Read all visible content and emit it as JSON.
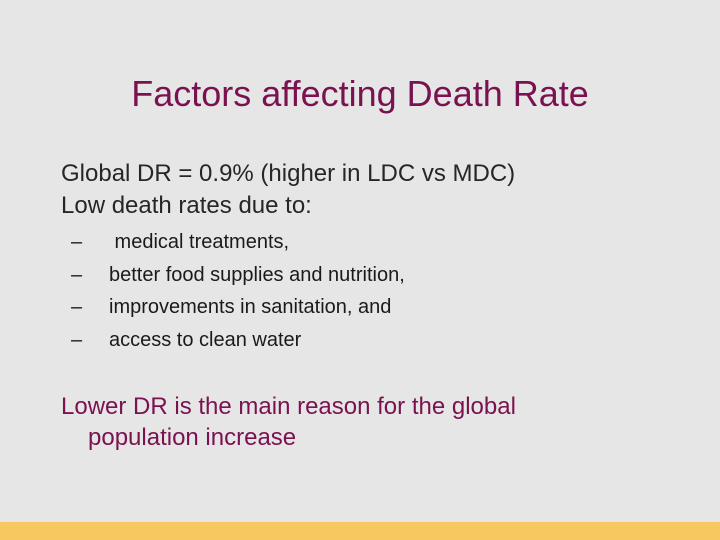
{
  "slide": {
    "title": "Factors affecting Death Rate",
    "bullets": [
      "Global DR = 0.9% (higher in LDC vs MDC)",
      "Low death rates due to:"
    ],
    "sub_bullets": [
      " medical treatments,",
      "better food supplies and nutrition,",
      "improvements in sanitation, and",
      "access to clean water"
    ],
    "dash": "–",
    "conclusion_line1": "Lower DR is the main reason for the global",
    "conclusion_line2": "population increase",
    "colors": {
      "background": "#e6e6e6",
      "title": "#7a1250",
      "accent_bar": "#f7c760"
    }
  }
}
